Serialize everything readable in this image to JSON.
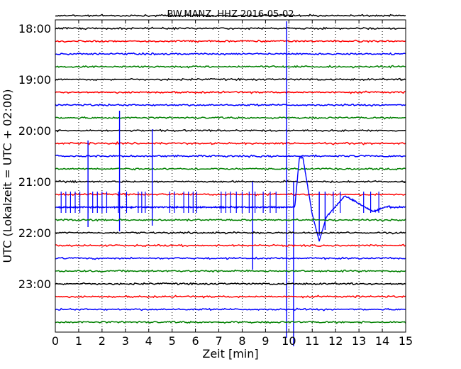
{
  "chart_data": {
    "type": "line",
    "title": "BW.MANZ..HHZ 2016-05-02",
    "xlabel": "Zeit  [min]",
    "ylabel": "UTC (Lokalzeit = UTC + 02:00)",
    "xlim": [
      0,
      15
    ],
    "x_ticks": [
      0,
      1,
      2,
      3,
      4,
      5,
      6,
      7,
      8,
      9,
      10,
      11,
      12,
      13,
      14,
      15
    ],
    "x_tick_labels": [
      "0",
      "1",
      "2",
      "3",
      "4",
      "5",
      "6",
      "7",
      "8",
      "9",
      "10",
      "11",
      "12",
      "13",
      "14",
      "15"
    ],
    "y_tick_labels": [
      "18:00",
      "19:00",
      "20:00",
      "21:00",
      "22:00",
      "23:00"
    ],
    "minutes_per_trace": 15,
    "grid": true,
    "trace_colors": [
      "#000000",
      "#ff0000",
      "#0000ff",
      "#008000"
    ],
    "traces": [
      {
        "start": "17:45",
        "color": "#000000"
      },
      {
        "start": "18:00",
        "color": "#000000"
      },
      {
        "start": "18:15",
        "color": "#ff0000"
      },
      {
        "start": "18:30",
        "color": "#0000ff"
      },
      {
        "start": "18:45",
        "color": "#008000"
      },
      {
        "start": "19:00",
        "color": "#000000"
      },
      {
        "start": "19:15",
        "color": "#ff0000"
      },
      {
        "start": "19:30",
        "color": "#0000ff"
      },
      {
        "start": "19:45",
        "color": "#008000"
      },
      {
        "start": "20:00",
        "color": "#000000"
      },
      {
        "start": "20:15",
        "color": "#ff0000"
      },
      {
        "start": "20:30",
        "color": "#0000ff"
      },
      {
        "start": "20:45",
        "color": "#008000"
      },
      {
        "start": "21:00",
        "color": "#000000"
      },
      {
        "start": "21:15",
        "color": "#ff0000"
      },
      {
        "start": "21:30",
        "color": "#0000ff",
        "event": true
      },
      {
        "start": "21:45",
        "color": "#008000"
      },
      {
        "start": "22:00",
        "color": "#000000"
      },
      {
        "start": "22:15",
        "color": "#ff0000"
      },
      {
        "start": "22:30",
        "color": "#0000ff"
      },
      {
        "start": "22:45",
        "color": "#008000"
      },
      {
        "start": "23:00",
        "color": "#000000"
      },
      {
        "start": "23:15",
        "color": "#ff0000"
      },
      {
        "start": "23:30",
        "color": "#0000ff"
      },
      {
        "start": "23:45",
        "color": "#008000"
      }
    ]
  }
}
